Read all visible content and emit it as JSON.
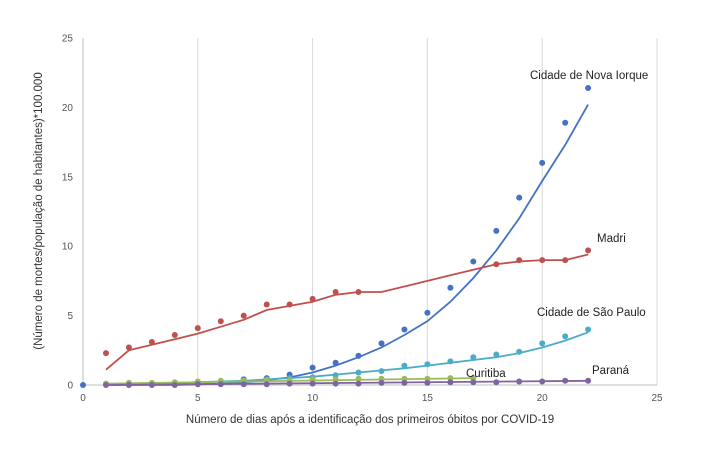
{
  "chart_data": {
    "type": "scatter",
    "title": "",
    "xlabel": "Número de dias após a identificação dos primeiros óbitos por COVID-19",
    "ylabel": "(Número de mortes/população de habitantes)*100.000",
    "xlim": [
      0,
      25
    ],
    "ylim": [
      0,
      25
    ],
    "xticks": [
      "0",
      "5",
      "10",
      "15",
      "20",
      "25"
    ],
    "yticks": [
      "0",
      "5",
      "10",
      "15",
      "20",
      "25"
    ],
    "grid": "vertical",
    "legend": "inline labels",
    "series": [
      {
        "name": "Cidade de Nova Iorque",
        "color": "#4472c4",
        "x": [
          0,
          1,
          2,
          3,
          4,
          5,
          6,
          7,
          8,
          9,
          10,
          11,
          12,
          13,
          14,
          15,
          16,
          17,
          18,
          19,
          20,
          21,
          22
        ],
        "y": [
          0,
          0.05,
          0.05,
          0.05,
          0.1,
          0.15,
          0.25,
          0.4,
          0.5,
          0.75,
          1.25,
          1.6,
          2.1,
          3.0,
          4.0,
          5.2,
          7.0,
          8.9,
          11.1,
          13.5,
          16.0,
          18.9,
          21.4
        ],
        "trend_x": [
          1,
          2,
          3,
          4,
          5,
          6,
          7,
          8,
          9,
          10,
          11,
          12,
          13,
          14,
          15,
          16,
          17,
          18,
          19,
          20,
          21,
          22
        ],
        "trend_y": [
          0,
          0,
          0,
          0,
          0.05,
          0.1,
          0.2,
          0.35,
          0.55,
          0.9,
          1.4,
          2.0,
          2.7,
          3.6,
          4.6,
          6.0,
          7.7,
          9.7,
          12.0,
          14.7,
          17.3,
          20.2
        ]
      },
      {
        "name": "Madri",
        "color": "#c0504d",
        "x": [
          1,
          2,
          3,
          4,
          5,
          6,
          7,
          8,
          9,
          10,
          11,
          12,
          18,
          19,
          20,
          21,
          22
        ],
        "y": [
          2.3,
          2.7,
          3.1,
          3.6,
          4.1,
          4.6,
          5.0,
          5.8,
          5.8,
          6.2,
          6.7,
          6.7,
          8.7,
          9.0,
          9.0,
          9.0,
          9.7
        ],
        "trend_x": [
          1,
          2,
          3,
          4,
          5,
          6,
          7,
          8,
          9,
          10,
          11,
          12,
          13,
          14,
          15,
          16,
          17,
          18,
          19,
          20,
          21,
          22
        ],
        "trend_y": [
          1.1,
          2.5,
          2.9,
          3.3,
          3.7,
          4.2,
          4.7,
          5.4,
          5.7,
          6.0,
          6.5,
          6.7,
          6.7,
          7.1,
          7.5,
          7.9,
          8.3,
          8.7,
          8.9,
          9.0,
          9.0,
          9.4
        ]
      },
      {
        "name": "Cidade de São Paulo",
        "color": "#4bacc6",
        "x": [
          1,
          2,
          3,
          4,
          5,
          6,
          7,
          8,
          9,
          10,
          11,
          12,
          13,
          14,
          15,
          16,
          17,
          18,
          19,
          20,
          21,
          22
        ],
        "y": [
          0.05,
          0.05,
          0.05,
          0.1,
          0.15,
          0.2,
          0.3,
          0.4,
          0.5,
          0.55,
          0.7,
          0.9,
          1.0,
          1.4,
          1.5,
          1.7,
          2.0,
          2.2,
          2.4,
          3.0,
          3.5,
          4.0
        ],
        "trend_x": [
          1,
          2,
          3,
          4,
          5,
          6,
          7,
          8,
          9,
          10,
          11,
          12,
          13,
          14,
          15,
          16,
          17,
          18,
          19,
          20,
          21,
          22
        ],
        "trend_y": [
          0,
          0.05,
          0.1,
          0.15,
          0.2,
          0.25,
          0.3,
          0.4,
          0.5,
          0.6,
          0.75,
          0.9,
          1.05,
          1.2,
          1.4,
          1.6,
          1.8,
          2.0,
          2.3,
          2.7,
          3.2,
          3.8
        ]
      },
      {
        "name": "Curitiba",
        "color": "#9bbb59",
        "x": [
          1,
          2,
          3,
          4,
          5,
          6,
          7,
          8,
          9,
          10,
          11,
          12,
          13,
          14,
          15,
          16,
          17
        ],
        "y": [
          0.1,
          0.15,
          0.15,
          0.2,
          0.25,
          0.3,
          0.3,
          0.35,
          0.35,
          0.4,
          0.4,
          0.45,
          0.45,
          0.45,
          0.45,
          0.5,
          0.5
        ],
        "trend_x": [
          1,
          17
        ],
        "trend_y": [
          0.1,
          0.5
        ]
      },
      {
        "name": "Paraná",
        "color": "#8064a2",
        "x": [
          1,
          2,
          3,
          4,
          5,
          6,
          7,
          8,
          9,
          10,
          11,
          12,
          13,
          14,
          15,
          16,
          17,
          18,
          19,
          20,
          21,
          22
        ],
        "y": [
          0,
          0,
          0,
          0,
          0.05,
          0.05,
          0.05,
          0.05,
          0.1,
          0.1,
          0.1,
          0.1,
          0.15,
          0.15,
          0.15,
          0.2,
          0.2,
          0.2,
          0.25,
          0.25,
          0.3,
          0.3
        ],
        "trend_x": [
          1,
          22
        ],
        "trend_y": [
          0,
          0.3
        ]
      }
    ]
  }
}
